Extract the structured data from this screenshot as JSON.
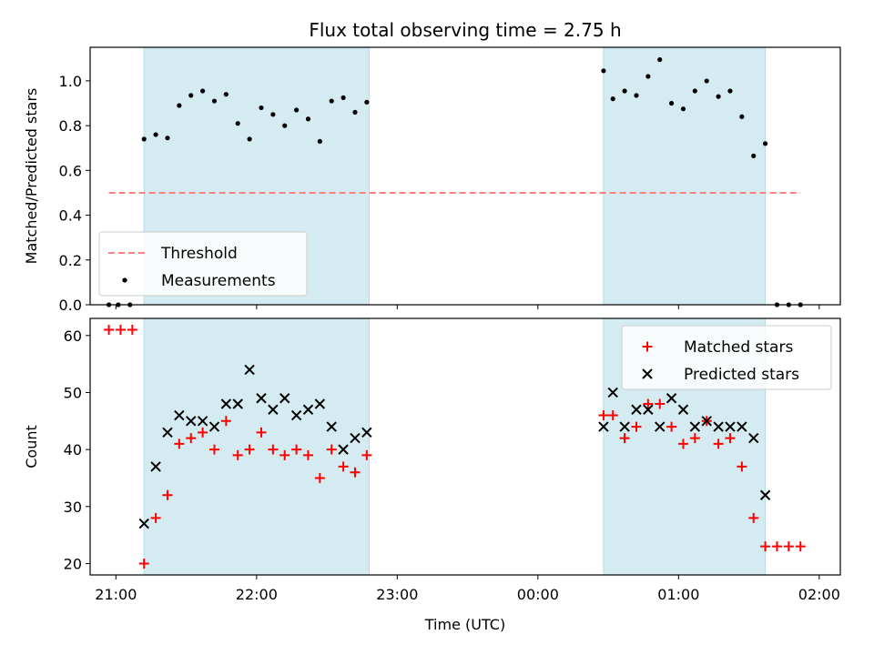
{
  "title": "Flux total observing time = 2.75 h",
  "chart_data": [
    {
      "type": "scatter",
      "ylabel": "Matched/Predicted stars",
      "xlim": [
        "20:49",
        "02:09"
      ],
      "ylim": [
        0,
        1.15
      ],
      "yticks": [
        "0.0",
        "0.2",
        "0.4",
        "0.6",
        "0.8",
        "1.0"
      ],
      "shaded_spans": [
        [
          "21:12",
          "22:48"
        ],
        [
          "00:28",
          "01:37"
        ]
      ],
      "shade_color": "#d4ebf1",
      "legend_loc": "lower-left",
      "threshold": {
        "name": "Threshold",
        "value": 0.5,
        "x_start": "20:57",
        "x_end": "01:52",
        "color": "#ff7f7f"
      },
      "series": [
        {
          "name": "Measurements",
          "marker": "dot",
          "color": "#000000",
          "x": [
            "20:57",
            "21:01",
            "21:06",
            "21:12",
            "21:17",
            "21:22",
            "21:27",
            "21:32",
            "21:37",
            "21:42",
            "21:47",
            "21:52",
            "21:57",
            "22:02",
            "22:07",
            "22:12",
            "22:17",
            "22:22",
            "22:27",
            "22:32",
            "22:37",
            "22:42",
            "22:47",
            "00:28",
            "00:32",
            "00:37",
            "00:42",
            "00:47",
            "00:52",
            "00:57",
            "01:02",
            "01:07",
            "01:12",
            "01:17",
            "01:22",
            "01:27",
            "01:32",
            "01:37",
            "01:42",
            "01:47",
            "01:52"
          ],
          "y": [
            0.0,
            0.0,
            0.0,
            0.74,
            0.76,
            0.745,
            0.89,
            0.935,
            0.955,
            0.91,
            0.94,
            0.81,
            0.74,
            0.88,
            0.85,
            0.8,
            0.87,
            0.83,
            0.73,
            0.91,
            0.925,
            0.86,
            0.905,
            1.045,
            0.92,
            0.955,
            0.935,
            1.02,
            1.095,
            0.9,
            0.875,
            0.955,
            1.0,
            0.93,
            0.955,
            0.84,
            0.665,
            0.72,
            0.0,
            0.0,
            0.0
          ]
        }
      ]
    },
    {
      "type": "scatter",
      "xlabel": "Time (UTC)",
      "ylabel": "Count",
      "xlim": [
        "20:49",
        "02:09"
      ],
      "ylim": [
        18,
        63
      ],
      "yticks": [
        "20",
        "30",
        "40",
        "50",
        "60"
      ],
      "xticks": [
        "21:00",
        "22:00",
        "23:00",
        "00:00",
        "01:00",
        "02:00"
      ],
      "shaded_spans": [
        [
          "21:12",
          "22:48"
        ],
        [
          "00:28",
          "01:37"
        ]
      ],
      "shade_color": "#d4ebf1",
      "legend_loc": "upper-right",
      "series": [
        {
          "name": "Matched stars",
          "marker": "plus",
          "color": "#ff0000",
          "x": [
            "20:57",
            "21:02",
            "21:07",
            "21:12",
            "21:17",
            "21:22",
            "21:27",
            "21:32",
            "21:37",
            "21:42",
            "21:47",
            "21:52",
            "21:57",
            "22:02",
            "22:07",
            "22:12",
            "22:17",
            "22:22",
            "22:27",
            "22:32",
            "22:37",
            "22:42",
            "22:47",
            "00:28",
            "00:32",
            "00:37",
            "00:42",
            "00:47",
            "00:52",
            "00:57",
            "01:02",
            "01:07",
            "01:12",
            "01:17",
            "01:22",
            "01:27",
            "01:32",
            "01:37",
            "01:42",
            "01:47",
            "01:52"
          ],
          "y": [
            61,
            61,
            61,
            20,
            28,
            32,
            41,
            42,
            43,
            40,
            45,
            39,
            40,
            43,
            40,
            39,
            40,
            39,
            35,
            40,
            37,
            36,
            39,
            46,
            46,
            42,
            44,
            48,
            48,
            44,
            41,
            42,
            45,
            41,
            42,
            37,
            28,
            23,
            23,
            23,
            23
          ]
        },
        {
          "name": "Predicted stars",
          "marker": "x",
          "color": "#000000",
          "x": [
            "21:12",
            "21:17",
            "21:22",
            "21:27",
            "21:32",
            "21:37",
            "21:42",
            "21:47",
            "21:52",
            "21:57",
            "22:02",
            "22:07",
            "22:12",
            "22:17",
            "22:22",
            "22:27",
            "22:32",
            "22:37",
            "22:42",
            "22:47",
            "00:28",
            "00:32",
            "00:37",
            "00:42",
            "00:47",
            "00:52",
            "00:57",
            "01:02",
            "01:07",
            "01:12",
            "01:17",
            "01:22",
            "01:27",
            "01:32",
            "01:37"
          ],
          "y": [
            27,
            37,
            43,
            46,
            45,
            45,
            44,
            48,
            48,
            54,
            49,
            47,
            49,
            46,
            47,
            48,
            44,
            40,
            42,
            43,
            44,
            50,
            44,
            47,
            47,
            44,
            49,
            47,
            44,
            45,
            44,
            44,
            44,
            42,
            32
          ]
        }
      ]
    }
  ]
}
